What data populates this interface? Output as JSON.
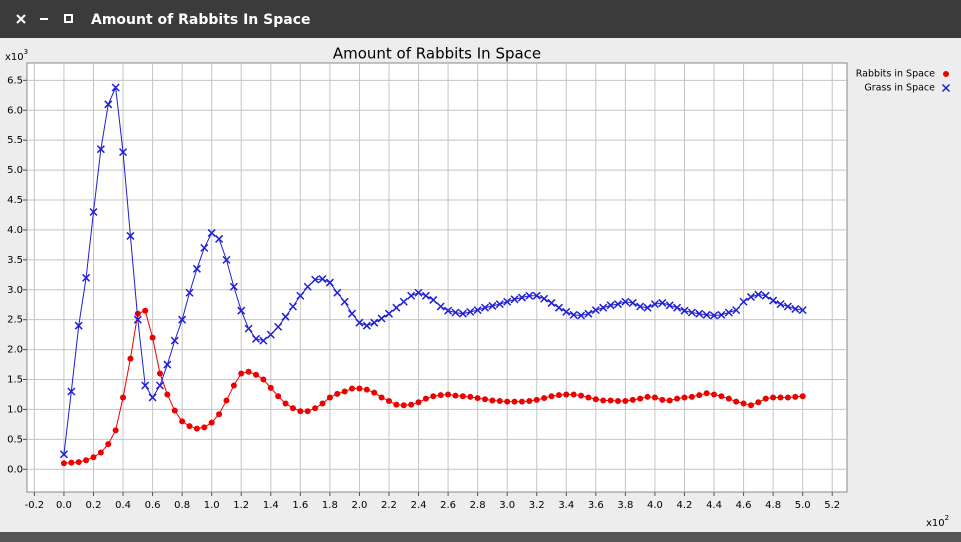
{
  "window": {
    "title": "Amount of Rabbits In Space"
  },
  "chart_data": {
    "type": "scatter",
    "title": "Amount of Rabbits In Space",
    "y_multiplier": "x10",
    "y_exponent": "3",
    "x_multiplier": "x10",
    "x_exponent": "2",
    "grid": true,
    "legend": "right",
    "xlim": [
      -0.25,
      5.3
    ],
    "ylim": [
      -0.38,
      6.79
    ],
    "xticks": [
      -0.2,
      {
        "value": 0,
        "label": "0.0"
      },
      0.2,
      0.4,
      0.6,
      0.8,
      {
        "value": 1,
        "label": "1.0"
      },
      1.2,
      1.4,
      1.6,
      1.8,
      {
        "value": 2,
        "label": "2.0"
      },
      2.2,
      2.4,
      2.6,
      2.8,
      {
        "value": 3,
        "label": "3.0"
      },
      3.2,
      3.4,
      3.6,
      3.8,
      {
        "value": 4,
        "label": "4.0"
      },
      4.2,
      4.4,
      4.6,
      4.8,
      {
        "value": 5,
        "label": "5.0"
      },
      5.2
    ],
    "yticks": [
      {
        "value": 0,
        "label": "0.0"
      },
      0.5,
      {
        "value": 1,
        "label": "1.0"
      },
      1.5,
      {
        "value": 2,
        "label": "2.0"
      },
      2.5,
      {
        "value": 3,
        "label": "3.0"
      },
      3.5,
      {
        "value": 4,
        "label": "4.0"
      },
      4.5,
      {
        "value": 5,
        "label": "5.0"
      },
      5.5,
      {
        "value": 6,
        "label": "6.0"
      },
      6.5
    ],
    "x": [
      0,
      0.05,
      0.1,
      0.15,
      0.2,
      0.25,
      0.3,
      0.35,
      0.4,
      0.45,
      0.5,
      0.55,
      0.6,
      0.65,
      0.7,
      0.75,
      0.8,
      0.85,
      0.9,
      0.95,
      1,
      1.05,
      1.1,
      1.15,
      1.2,
      1.25,
      1.3,
      1.35,
      1.4,
      1.45,
      1.5,
      1.55,
      1.6,
      1.65,
      1.7,
      1.75,
      1.8,
      1.85,
      1.9,
      1.95,
      2,
      2.05,
      2.1,
      2.15,
      2.2,
      2.25,
      2.3,
      2.35,
      2.4,
      2.45,
      2.5,
      2.55,
      2.6,
      2.65,
      2.7,
      2.75,
      2.8,
      2.85,
      2.9,
      2.95,
      3,
      3.05,
      3.1,
      3.15,
      3.2,
      3.25,
      3.3,
      3.35,
      3.4,
      3.45,
      3.5,
      3.55,
      3.6,
      3.65,
      3.7,
      3.75,
      3.8,
      3.85,
      3.9,
      3.95,
      4,
      4.05,
      4.1,
      4.15,
      4.2,
      4.25,
      4.3,
      4.35,
      4.4,
      4.45,
      4.5,
      4.55,
      4.6,
      4.65,
      4.7,
      4.75,
      4.8,
      4.85,
      4.9,
      4.95,
      5
    ],
    "series": [
      {
        "name": "Rabbits in Space",
        "color": "#ee0000",
        "marker": "circle",
        "values": [
          0.1,
          0.11,
          0.12,
          0.15,
          0.2,
          0.28,
          0.42,
          0.65,
          1.2,
          1.85,
          2.6,
          2.65,
          2.2,
          1.6,
          1.25,
          0.98,
          0.8,
          0.72,
          0.68,
          0.7,
          0.78,
          0.92,
          1.15,
          1.4,
          1.6,
          1.63,
          1.58,
          1.5,
          1.36,
          1.22,
          1.1,
          1.02,
          0.97,
          0.97,
          1.02,
          1.1,
          1.2,
          1.26,
          1.3,
          1.35,
          1.35,
          1.33,
          1.28,
          1.2,
          1.14,
          1.08,
          1.07,
          1.08,
          1.12,
          1.18,
          1.22,
          1.24,
          1.25,
          1.23,
          1.22,
          1.21,
          1.19,
          1.17,
          1.15,
          1.14,
          1.13,
          1.13,
          1.13,
          1.14,
          1.16,
          1.19,
          1.22,
          1.24,
          1.25,
          1.25,
          1.23,
          1.2,
          1.17,
          1.15,
          1.15,
          1.14,
          1.14,
          1.16,
          1.18,
          1.21,
          1.2,
          1.16,
          1.15,
          1.18,
          1.2,
          1.21,
          1.24,
          1.27,
          1.25,
          1.22,
          1.18,
          1.13,
          1.1,
          1.07,
          1.12,
          1.18,
          1.2,
          1.2,
          1.2,
          1.21,
          1.22
        ]
      },
      {
        "name": "Grass in Space",
        "color": "#1f1fd6",
        "marker": "x",
        "values": [
          0.25,
          1.3,
          2.4,
          3.2,
          4.3,
          5.35,
          6.1,
          6.38,
          5.3,
          3.9,
          2.5,
          1.4,
          1.2,
          1.4,
          1.75,
          2.15,
          2.5,
          2.95,
          3.35,
          3.7,
          3.95,
          3.85,
          3.5,
          3.05,
          2.65,
          2.35,
          2.18,
          2.15,
          2.25,
          2.38,
          2.55,
          2.72,
          2.9,
          3.05,
          3.17,
          3.18,
          3.12,
          2.95,
          2.8,
          2.6,
          2.45,
          2.4,
          2.45,
          2.52,
          2.6,
          2.7,
          2.8,
          2.9,
          2.95,
          2.9,
          2.83,
          2.72,
          2.65,
          2.62,
          2.6,
          2.63,
          2.66,
          2.7,
          2.73,
          2.76,
          2.8,
          2.84,
          2.87,
          2.9,
          2.9,
          2.85,
          2.78,
          2.7,
          2.63,
          2.58,
          2.57,
          2.6,
          2.66,
          2.7,
          2.74,
          2.76,
          2.8,
          2.78,
          2.72,
          2.7,
          2.76,
          2.78,
          2.74,
          2.7,
          2.65,
          2.62,
          2.6,
          2.58,
          2.57,
          2.58,
          2.62,
          2.66,
          2.8,
          2.88,
          2.92,
          2.9,
          2.82,
          2.76,
          2.72,
          2.68,
          2.66
        ]
      }
    ]
  }
}
